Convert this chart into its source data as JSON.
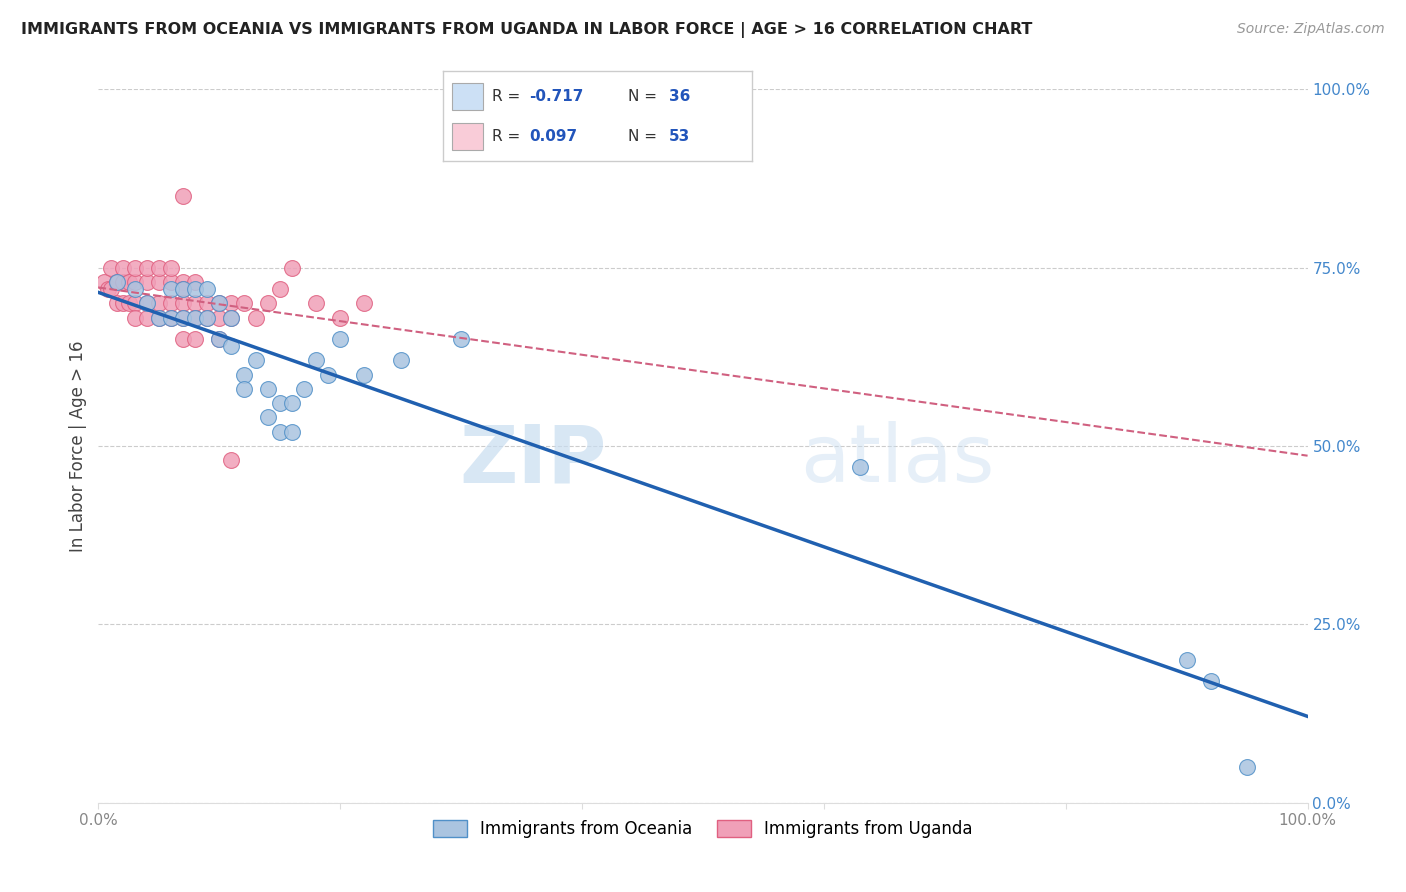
{
  "title": "IMMIGRANTS FROM OCEANIA VS IMMIGRANTS FROM UGANDA IN LABOR FORCE | AGE > 16 CORRELATION CHART",
  "source": "Source: ZipAtlas.com",
  "ylabel": "In Labor Force | Age > 16",
  "xmin": 0.0,
  "xmax": 1.0,
  "ymin": 0.0,
  "ymax": 1.0,
  "oceania_color": "#aac4e0",
  "uganda_color": "#f0a0b8",
  "oceania_edge_color": "#5090c8",
  "uganda_edge_color": "#e06080",
  "oceania_line_color": "#2060b0",
  "uganda_line_color": "#d06080",
  "legend_fill_blue": "#cce0f5",
  "legend_fill_pink": "#f9ccd8",
  "R_oceania": -0.717,
  "N_oceania": 36,
  "R_uganda": 0.097,
  "N_uganda": 53,
  "watermark_zip": "ZIP",
  "watermark_atlas": "atlas",
  "right_yticks": [
    0.0,
    0.25,
    0.5,
    0.75,
    1.0
  ],
  "right_yticklabels": [
    "0.0%",
    "25.0%",
    "50.0%",
    "75.0%",
    "100.0%"
  ],
  "xticks": [
    0.0,
    0.2,
    0.4,
    0.6,
    0.8,
    1.0
  ],
  "xticklabels": [
    "0.0%",
    "",
    "",
    "",
    "",
    "100.0%"
  ],
  "grid_color": "#cccccc",
  "oceania_x": [
    0.015,
    0.03,
    0.04,
    0.05,
    0.06,
    0.06,
    0.07,
    0.07,
    0.08,
    0.08,
    0.09,
    0.09,
    0.1,
    0.1,
    0.11,
    0.11,
    0.12,
    0.12,
    0.13,
    0.14,
    0.14,
    0.15,
    0.15,
    0.16,
    0.16,
    0.17,
    0.18,
    0.19,
    0.2,
    0.22,
    0.25,
    0.3,
    0.63,
    0.9,
    0.92,
    0.95
  ],
  "oceania_y": [
    0.73,
    0.72,
    0.7,
    0.68,
    0.72,
    0.68,
    0.72,
    0.68,
    0.72,
    0.68,
    0.72,
    0.68,
    0.7,
    0.65,
    0.68,
    0.64,
    0.6,
    0.58,
    0.62,
    0.58,
    0.54,
    0.56,
    0.52,
    0.56,
    0.52,
    0.58,
    0.62,
    0.6,
    0.65,
    0.6,
    0.62,
    0.65,
    0.47,
    0.2,
    0.17,
    0.05
  ],
  "uganda_x": [
    0.005,
    0.008,
    0.01,
    0.01,
    0.015,
    0.015,
    0.02,
    0.02,
    0.02,
    0.025,
    0.025,
    0.03,
    0.03,
    0.03,
    0.03,
    0.04,
    0.04,
    0.04,
    0.04,
    0.05,
    0.05,
    0.05,
    0.05,
    0.06,
    0.06,
    0.06,
    0.06,
    0.07,
    0.07,
    0.07,
    0.07,
    0.07,
    0.08,
    0.08,
    0.08,
    0.08,
    0.09,
    0.09,
    0.1,
    0.1,
    0.1,
    0.11,
    0.11,
    0.12,
    0.13,
    0.14,
    0.15,
    0.16,
    0.18,
    0.2,
    0.22,
    0.11,
    0.07
  ],
  "uganda_y": [
    0.73,
    0.72,
    0.72,
    0.75,
    0.73,
    0.7,
    0.73,
    0.75,
    0.7,
    0.73,
    0.7,
    0.73,
    0.75,
    0.7,
    0.68,
    0.73,
    0.75,
    0.7,
    0.68,
    0.73,
    0.75,
    0.7,
    0.68,
    0.73,
    0.75,
    0.7,
    0.68,
    0.73,
    0.72,
    0.7,
    0.68,
    0.65,
    0.73,
    0.7,
    0.68,
    0.65,
    0.7,
    0.68,
    0.7,
    0.68,
    0.65,
    0.7,
    0.68,
    0.7,
    0.68,
    0.7,
    0.72,
    0.75,
    0.7,
    0.68,
    0.7,
    0.48,
    0.85
  ]
}
